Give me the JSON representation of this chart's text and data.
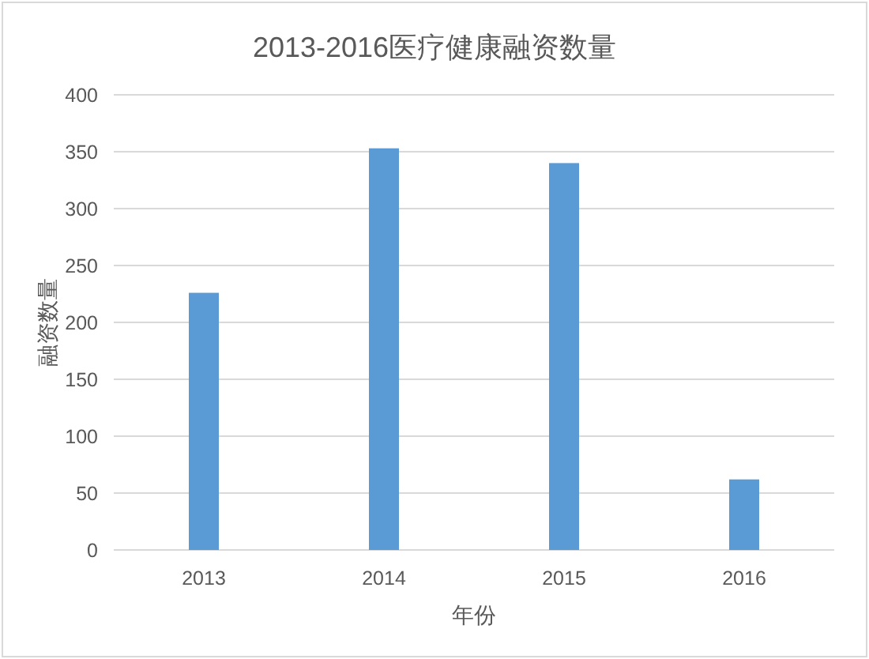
{
  "chart_data": {
    "type": "bar",
    "title": "2013-2016医疗健康融资数量",
    "xlabel": "年份",
    "ylabel": "融资数量",
    "categories": [
      "2013",
      "2014",
      "2015",
      "2016"
    ],
    "values": [
      226,
      353,
      340,
      62
    ],
    "color": "#5b9bd5",
    "ylim": [
      0,
      400
    ],
    "yticks": [
      0,
      50,
      100,
      150,
      200,
      250,
      300,
      350,
      400
    ],
    "grid": "y"
  }
}
